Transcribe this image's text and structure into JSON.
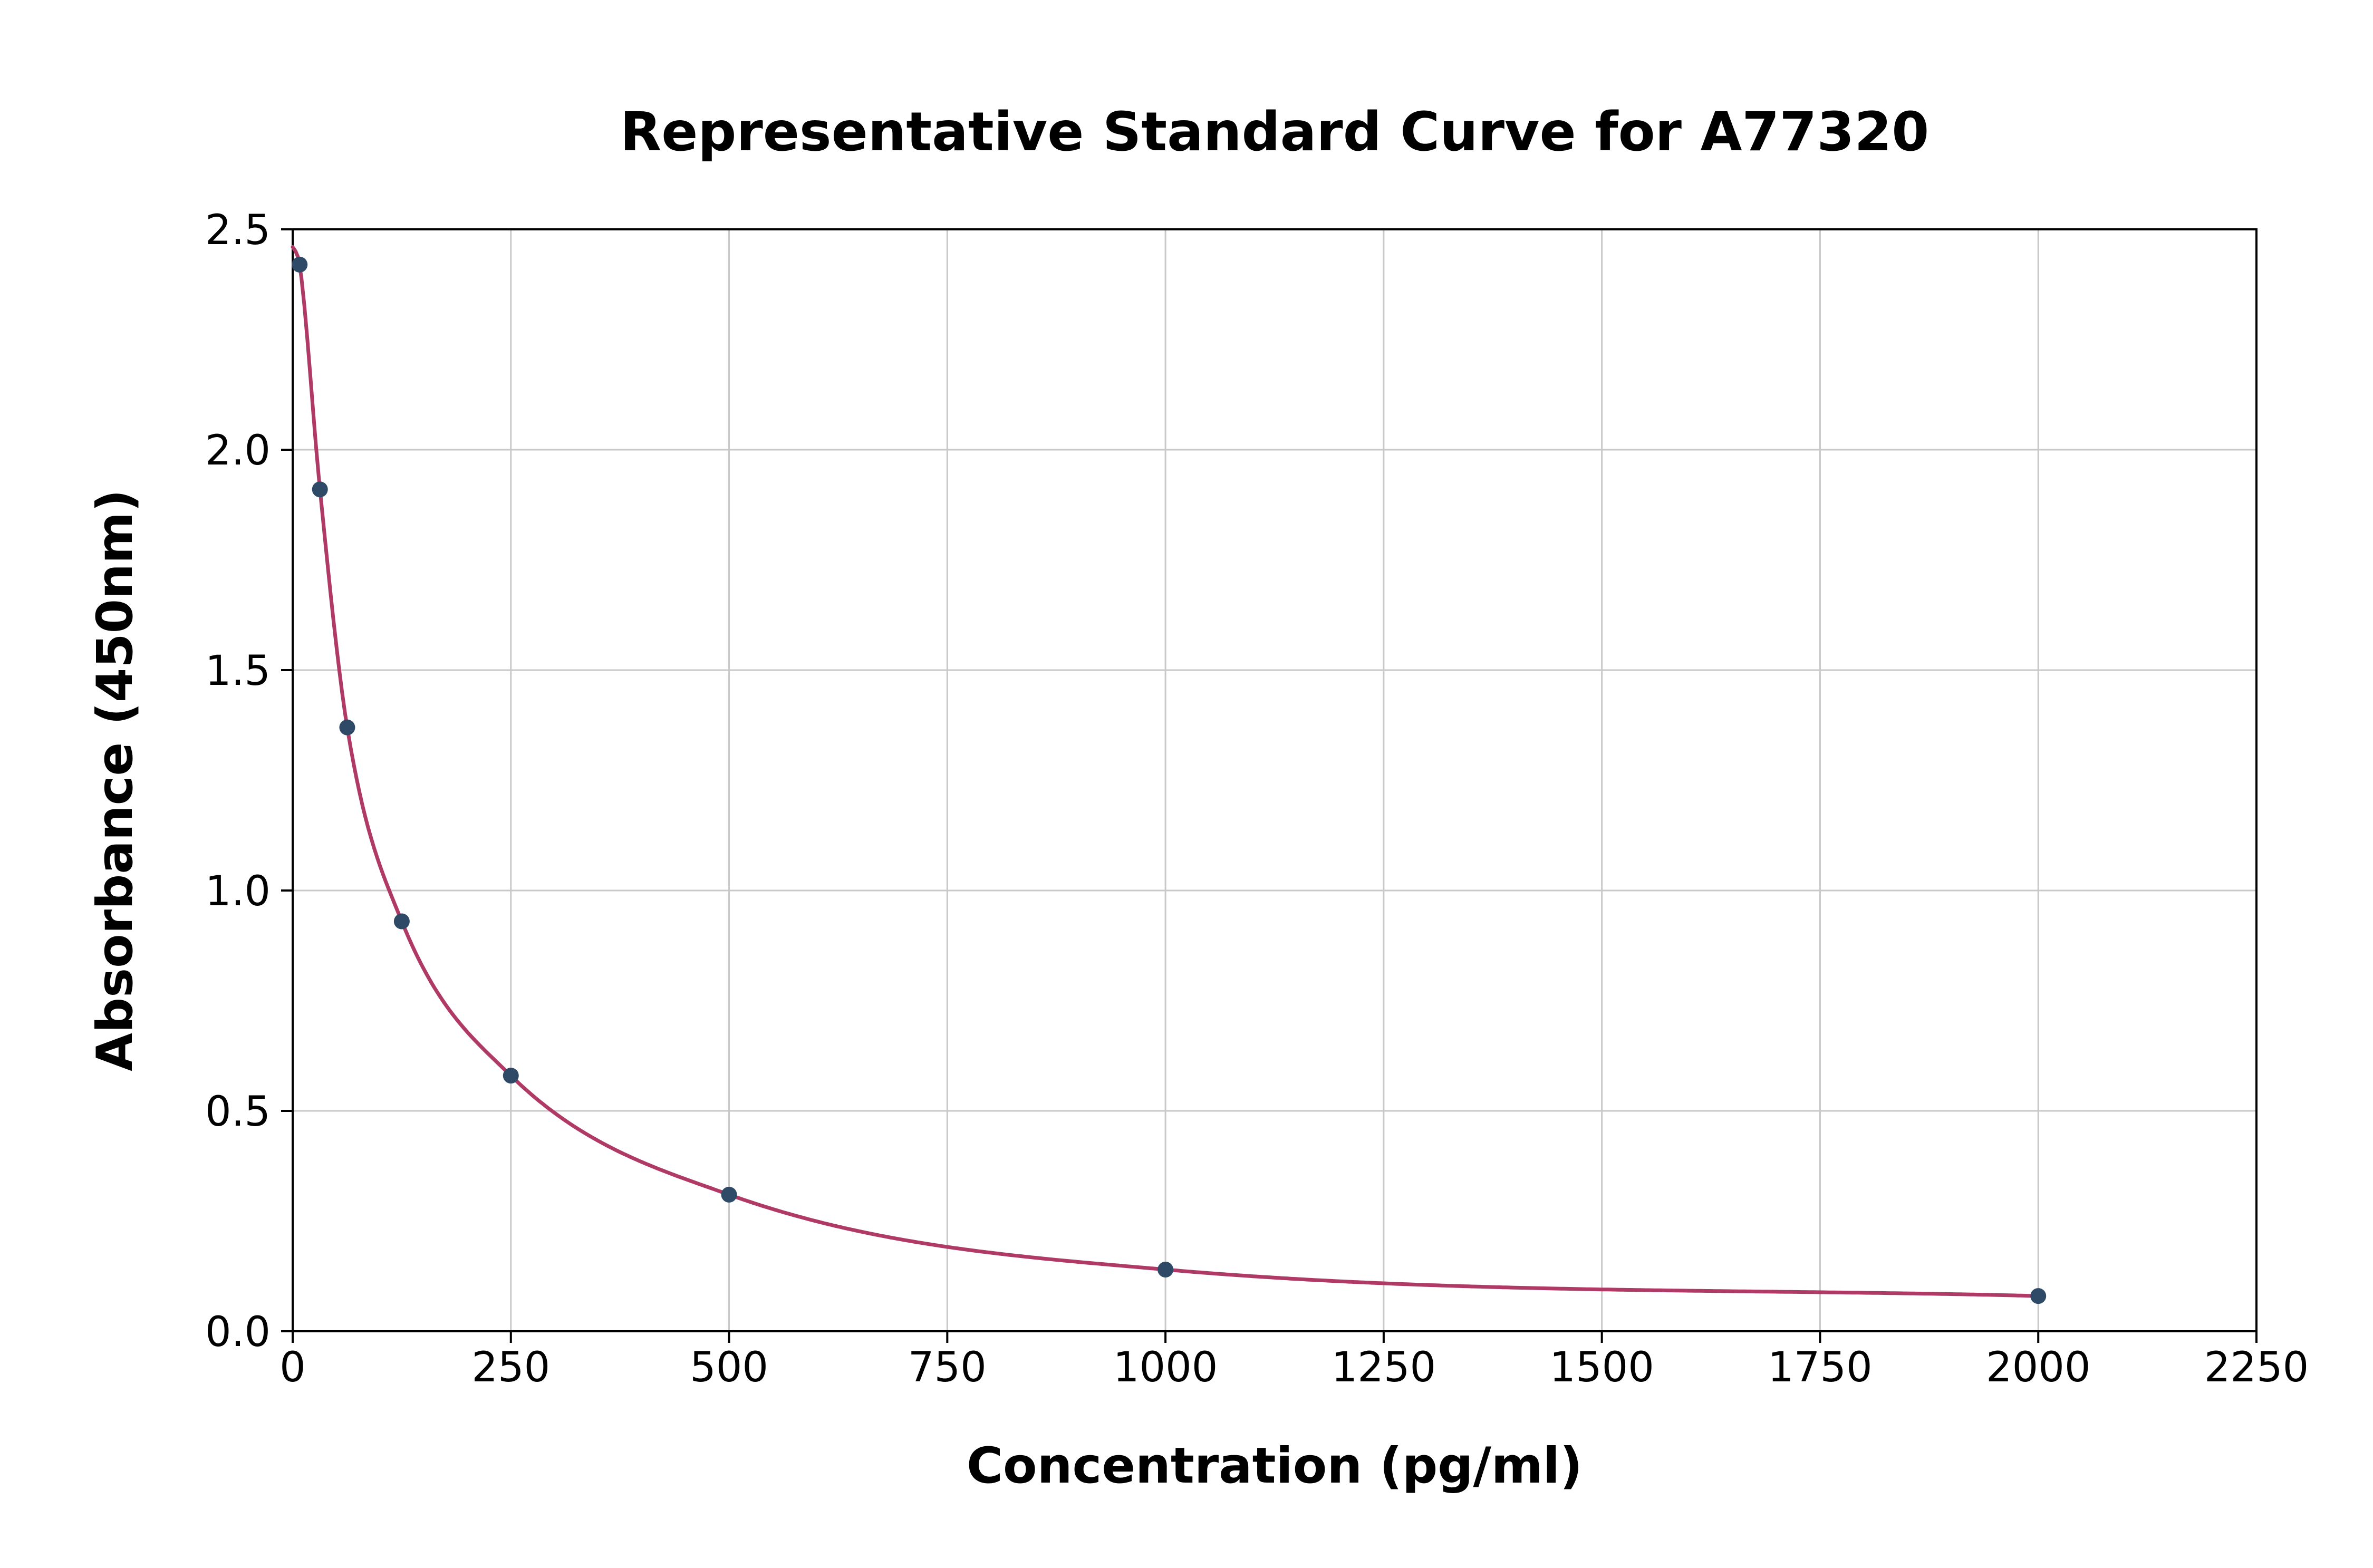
{
  "figure": {
    "background": "#ffffff"
  },
  "chart_data": {
    "type": "scatter",
    "title": "Representative Standard Curve for A77320",
    "xlabel": "Concentration (pg/ml)",
    "ylabel": "Absorbance (450nm)",
    "xlim": [
      0,
      2250
    ],
    "ylim": [
      0.0,
      2.5
    ],
    "x_ticks": [
      0,
      250,
      500,
      750,
      1000,
      1250,
      1500,
      1750,
      2000,
      2250
    ],
    "x_tick_labels": [
      "0",
      "250",
      "500",
      "750",
      "1000",
      "1250",
      "1500",
      "1750",
      "2000",
      "2250"
    ],
    "y_ticks": [
      0.0,
      0.5,
      1.0,
      1.5,
      2.0,
      2.5
    ],
    "y_tick_labels": [
      "0.0",
      "0.5",
      "1.0",
      "1.5",
      "2.0",
      "2.5"
    ],
    "grid": true,
    "legend_position": "none",
    "points": [
      [
        8,
        2.42
      ],
      [
        31.25,
        1.91
      ],
      [
        62.5,
        1.37
      ],
      [
        125,
        0.93
      ],
      [
        250,
        0.58
      ],
      [
        500,
        0.31
      ],
      [
        1000,
        0.14
      ],
      [
        2000,
        0.08
      ]
    ],
    "curve_start": [
      0,
      2.46
    ],
    "curve_end_x": 2000,
    "curve_type": "4PL standard-curve fit through points",
    "colors": {
      "line": "#b03a66",
      "marker": "#2e4a66",
      "grid": "#c8c8c8",
      "axis": "#000000",
      "text": "#000000"
    }
  }
}
